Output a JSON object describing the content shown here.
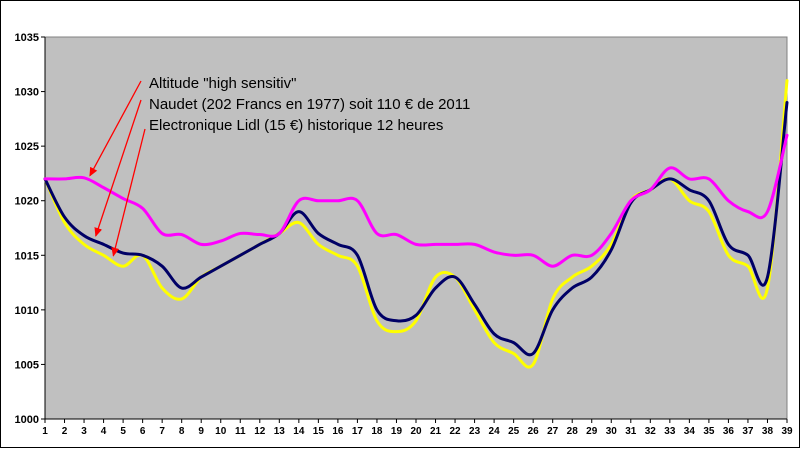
{
  "chart_data": {
    "type": "line",
    "x": [
      1,
      2,
      3,
      4,
      5,
      6,
      7,
      8,
      9,
      10,
      11,
      12,
      13,
      14,
      15,
      16,
      17,
      18,
      19,
      20,
      21,
      22,
      23,
      24,
      25,
      26,
      27,
      28,
      29,
      30,
      31,
      32,
      33,
      34,
      35,
      36,
      37,
      38,
      39
    ],
    "ylim": [
      1000,
      1035
    ],
    "yticks": [
      1000,
      1005,
      1010,
      1015,
      1020,
      1025,
      1030,
      1035
    ],
    "grid": false,
    "plot_background": "#c0c0c0",
    "series": [
      {
        "name": "Altitude \"high sensitiv\"",
        "color": "#ff00ff",
        "values": [
          1022,
          1022,
          1022.1,
          1021.2,
          1020.2,
          1019.3,
          1017,
          1016.9,
          1016,
          1016.3,
          1017,
          1016.9,
          1017,
          1020,
          1020,
          1020,
          1020,
          1017,
          1016.9,
          1016,
          1016,
          1016,
          1016,
          1015.3,
          1015,
          1015,
          1014,
          1015,
          1015,
          1017,
          1020,
          1021,
          1023,
          1022,
          1022,
          1020,
          1019,
          1019,
          1026
        ]
      },
      {
        "name": "Naudet (202 Francs en 1977) soit 110 € de 2011",
        "color": "#000066",
        "values": [
          1022,
          1018.5,
          1016.8,
          1016,
          1015.2,
          1015,
          1014,
          1012,
          1013,
          1014,
          1015,
          1016,
          1017,
          1019,
          1017,
          1016,
          1015,
          1010,
          1009,
          1009.5,
          1012,
          1013,
          1010.5,
          1007.8,
          1007,
          1006,
          1010,
          1012,
          1013,
          1015.5,
          1019.8,
          1021,
          1022,
          1021,
          1020,
          1016,
          1015,
          1013,
          1029
        ]
      },
      {
        "name": "Electronique Lidl (15 €) historique 12 heures",
        "color": "#ffff00",
        "values": [
          1022,
          1018,
          1016,
          1015,
          1014,
          1015,
          1012,
          1011,
          1013,
          1014,
          1015,
          1016,
          1017,
          1018,
          1016,
          1015,
          1014,
          1009,
          1008,
          1009,
          1013,
          1013,
          1010,
          1007,
          1006,
          1005,
          1011,
          1013,
          1014,
          1016,
          1020,
          1021,
          1022,
          1020,
          1019,
          1015,
          1014,
          1012,
          1031
        ]
      }
    ],
    "annotations": [
      "Altitude \"high sensitiv\"",
      "Naudet (202 Francs en 1977) soit 110 € de 2011",
      "Electronique Lidl (15 €) historique 12 heures"
    ],
    "arrow_color": "#ff0000"
  }
}
